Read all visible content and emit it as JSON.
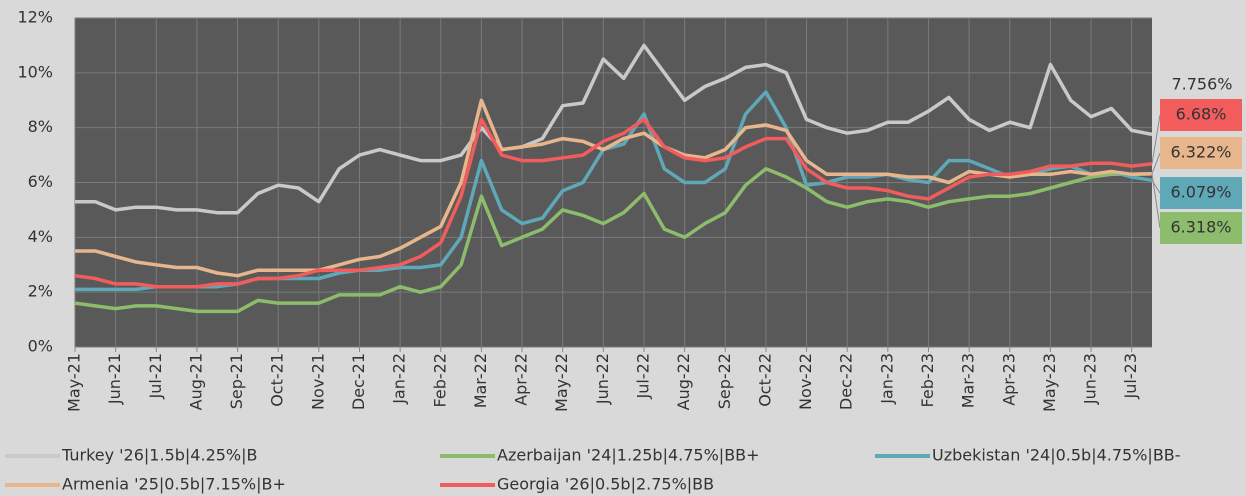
{
  "chart_data": {
    "type": "line",
    "categories": [
      "May-21",
      null,
      "Jun-21",
      null,
      "Jul-21",
      null,
      "Aug-21",
      null,
      "Sep-21",
      null,
      "Oct-21",
      null,
      "Nov-21",
      null,
      "Dec-21",
      null,
      "Jan-22",
      null,
      "Feb-22",
      null,
      "Mar-22",
      null,
      "Apr-22",
      null,
      "May-22",
      null,
      "Jun-22",
      null,
      "Jul-22",
      null,
      "Aug-22",
      null,
      "Sep-22",
      null,
      "Oct-22",
      null,
      "Nov-22",
      null,
      "Dec-22",
      null,
      "Jan-23",
      null,
      "Feb-23",
      null,
      "Mar-23",
      null,
      "Apr-23",
      null,
      "May-23",
      null,
      "Jun-23",
      null,
      "Jul-23",
      null
    ],
    "ylim": [
      0,
      12
    ],
    "yticks": [
      {
        "value": 0,
        "label": "0%"
      },
      {
        "value": 2,
        "label": "2%"
      },
      {
        "value": 4,
        "label": "4%"
      },
      {
        "value": 6,
        "label": "6%"
      },
      {
        "value": 8,
        "label": "8%"
      },
      {
        "value": 10,
        "label": "10%"
      },
      {
        "value": 12,
        "label": "12%"
      }
    ],
    "grid": true,
    "series": [
      {
        "name": "Turkey '26|1.5b|4.25%|B",
        "color": "#c9c9c9",
        "last_label": "7.756%",
        "values": [
          5.3,
          5.3,
          5.0,
          5.1,
          5.1,
          5.0,
          5.0,
          4.9,
          4.9,
          5.6,
          5.9,
          5.8,
          5.3,
          6.5,
          7.0,
          7.2,
          7.0,
          6.8,
          6.8,
          7.0,
          8.0,
          7.2,
          7.3,
          7.6,
          8.8,
          8.9,
          10.5,
          9.8,
          11.0,
          10.0,
          9.0,
          9.5,
          9.8,
          10.2,
          10.3,
          10.0,
          8.3,
          8.0,
          7.8,
          7.9,
          8.2,
          8.2,
          8.6,
          9.1,
          8.3,
          7.9,
          8.2,
          8.0,
          10.3,
          9.0,
          8.4,
          8.7,
          7.9,
          7.756
        ]
      },
      {
        "name": "Azerbaijan '24|1.25b|4.75%|BB+",
        "color": "#8cbc6c",
        "last_label": "6.318%",
        "values": [
          1.6,
          1.5,
          1.4,
          1.5,
          1.5,
          1.4,
          1.3,
          1.3,
          1.3,
          1.7,
          1.6,
          1.6,
          1.6,
          1.9,
          1.9,
          1.9,
          2.2,
          2.0,
          2.2,
          3.0,
          5.5,
          3.7,
          4.0,
          4.3,
          5.0,
          4.8,
          4.5,
          4.9,
          5.6,
          4.3,
          4.0,
          4.5,
          4.9,
          5.9,
          6.5,
          6.2,
          5.8,
          5.3,
          5.1,
          5.3,
          5.4,
          5.3,
          5.1,
          5.3,
          5.4,
          5.5,
          5.5,
          5.6,
          5.8,
          6.0,
          6.2,
          6.3,
          6.3,
          6.318
        ]
      },
      {
        "name": "Uzbekistan '24|0.5b|4.75%|BB-",
        "color": "#5ea8b8",
        "last_label": "6.079%",
        "values": [
          2.1,
          2.1,
          2.1,
          2.1,
          2.2,
          2.2,
          2.2,
          2.2,
          2.3,
          2.5,
          2.5,
          2.5,
          2.5,
          2.7,
          2.8,
          2.8,
          2.9,
          2.9,
          3.0,
          4.0,
          6.8,
          5.0,
          4.5,
          4.7,
          5.7,
          6.0,
          7.2,
          7.4,
          8.5,
          6.5,
          6.0,
          6.0,
          6.5,
          8.5,
          9.3,
          8.0,
          5.9,
          6.0,
          6.2,
          6.2,
          6.3,
          6.1,
          6.0,
          6.8,
          6.8,
          6.5,
          6.2,
          6.3,
          6.5,
          6.6,
          6.3,
          6.4,
          6.2,
          6.079
        ]
      },
      {
        "name": "Armenia '25|0.5b|7.15%|B+",
        "color": "#e8b68c",
        "last_label": "6.322%",
        "values": [
          3.5,
          3.5,
          3.3,
          3.1,
          3.0,
          2.9,
          2.9,
          2.7,
          2.6,
          2.8,
          2.8,
          2.8,
          2.8,
          3.0,
          3.2,
          3.3,
          3.6,
          4.0,
          4.4,
          6.0,
          9.0,
          7.2,
          7.3,
          7.4,
          7.6,
          7.5,
          7.2,
          7.6,
          7.8,
          7.3,
          7.0,
          6.9,
          7.2,
          8.0,
          8.1,
          7.9,
          6.8,
          6.3,
          6.3,
          6.3,
          6.3,
          6.2,
          6.2,
          6.0,
          6.4,
          6.3,
          6.2,
          6.3,
          6.3,
          6.4,
          6.3,
          6.4,
          6.3,
          6.322
        ]
      },
      {
        "name": "Georgia '26|0.5b|2.75%|BB",
        "color": "#f25c5c",
        "last_label": "6.68%",
        "values": [
          2.6,
          2.5,
          2.3,
          2.3,
          2.2,
          2.2,
          2.2,
          2.3,
          2.3,
          2.5,
          2.5,
          2.6,
          2.8,
          2.8,
          2.8,
          2.9,
          3.0,
          3.3,
          3.8,
          5.5,
          8.3,
          7.0,
          6.8,
          6.8,
          6.9,
          7.0,
          7.5,
          7.8,
          8.3,
          7.3,
          6.9,
          6.8,
          6.9,
          7.3,
          7.6,
          7.6,
          6.5,
          6.0,
          5.8,
          5.8,
          5.7,
          5.5,
          5.4,
          5.8,
          6.2,
          6.3,
          6.3,
          6.4,
          6.6,
          6.6,
          6.7,
          6.7,
          6.6,
          6.68
        ]
      }
    ]
  }
}
